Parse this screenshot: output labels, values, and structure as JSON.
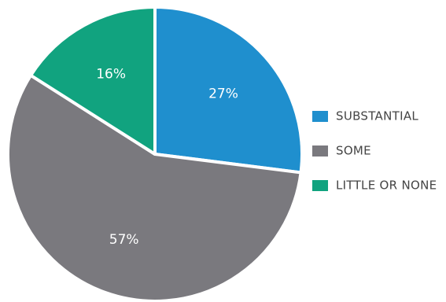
{
  "chart_data": {
    "type": "pie",
    "title": "",
    "start_angle_deg": 0,
    "direction": "clockwise",
    "slices": [
      {
        "label": "SUBSTANTIAL",
        "value": 27,
        "display": "27%",
        "color": "#1f8fce"
      },
      {
        "label": "SOME",
        "value": 57,
        "display": "57%",
        "color": "#7a797e"
      },
      {
        "label": "LITTLE OR NONE",
        "value": 16,
        "display": "16%",
        "color": "#11a37f"
      }
    ],
    "legend": {
      "position": "right",
      "items": [
        "SUBSTANTIAL",
        "SOME",
        "LITTLE OR NONE"
      ]
    }
  }
}
